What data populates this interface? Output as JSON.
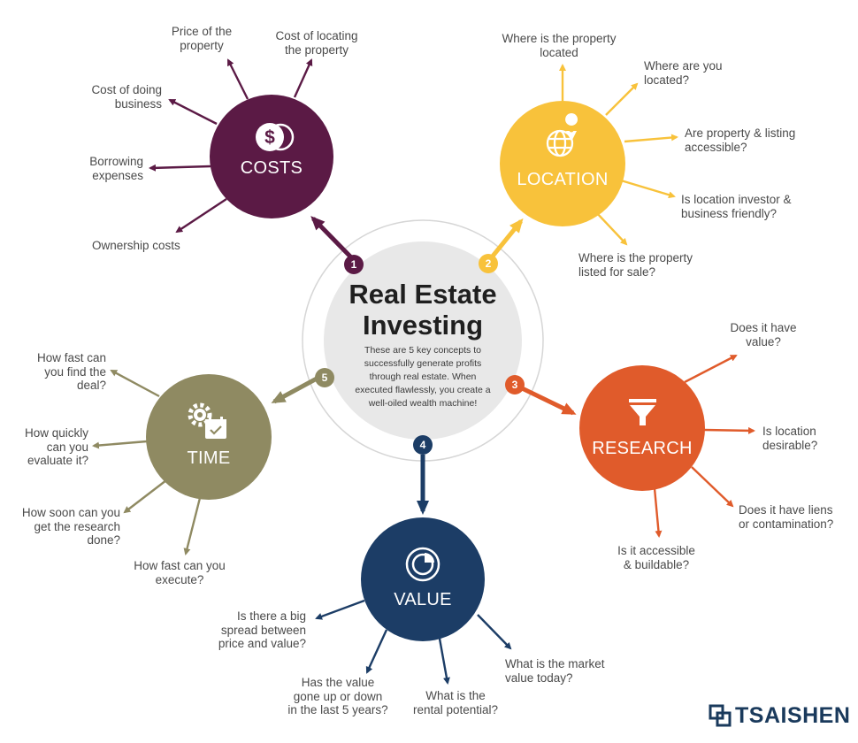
{
  "title": "Real Estate\nInvesting",
  "subtitle": "These are 5 key concepts to\nsuccessfully generate profits\nthrough real estate. When\nexecuted flawlessly, you create a\nwell-oiled wealth machine!",
  "brand": "TSAISHEN",
  "colors": {
    "costs": "#5b1a45",
    "location": "#f8c23b",
    "research": "#e05b2b",
    "value": "#1c3d66",
    "time": "#8f8a62",
    "hub": "#e8e8e8",
    "ring": "#d6d6d6"
  },
  "concepts": [
    {
      "key": "costs",
      "number": "1",
      "name": "COSTS",
      "icon": "dollar-coin-icon",
      "questions": [
        "Price of the\nproperty",
        "Cost of locating\nthe property",
        "Cost of doing\nbusiness",
        "Borrowing\nexpenses",
        "Ownership costs"
      ]
    },
    {
      "key": "location",
      "number": "2",
      "name": "LOCATION",
      "icon": "globe-pin-icon",
      "questions": [
        "Where is the property\nlocated",
        "Where are you\nlocated?",
        "Are property & listing\naccessible?",
        "Is location investor &\nbusiness friendly?",
        "Where is the property\nlisted for sale?"
      ]
    },
    {
      "key": "research",
      "number": "3",
      "name": "RESEARCH",
      "icon": "funnel-icon",
      "questions": [
        "Does it have\nvalue?",
        "Is location\ndesirable?",
        "Does it have liens\nor contamination?",
        "Is it accessible\n& buildable?"
      ]
    },
    {
      "key": "value",
      "number": "4",
      "name": "VALUE",
      "icon": "pie-chart-icon",
      "questions": [
        "Is there a big\nspread between\nprice and value?",
        "Has the value\ngone up or down\nin the last 5 years?",
        "What is the\nrental potential?",
        "What is the market\nvalue today?"
      ]
    },
    {
      "key": "time",
      "number": "5",
      "name": "TIME",
      "icon": "gear-calendar-icon",
      "questions": [
        "How fast can\nyou find the\ndeal?",
        "How quickly\ncan you\nevaluate it?",
        "How soon can you\nget the research\ndone?",
        "How fast can you\nexecute?"
      ]
    }
  ]
}
